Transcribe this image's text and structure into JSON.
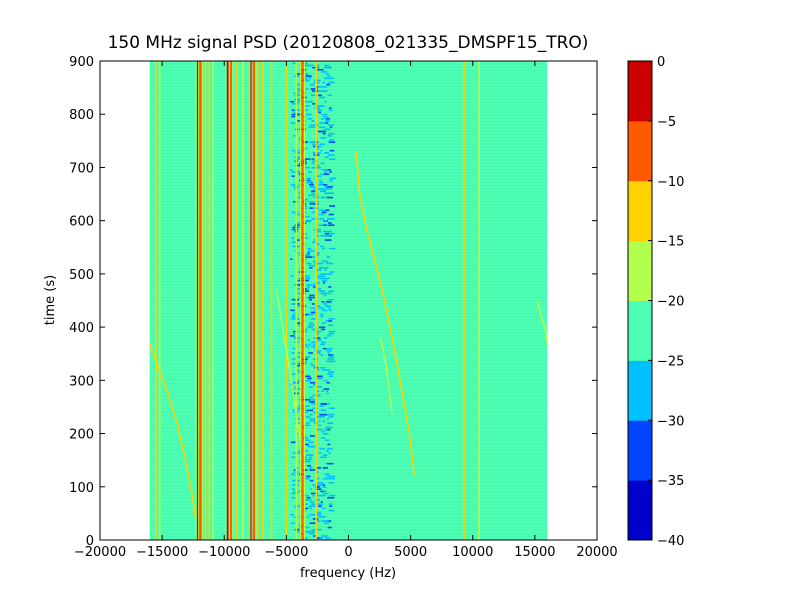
{
  "chart_data": {
    "type": "heatmap",
    "title": "150 MHz signal PSD (20120808_021335_DMSPF15_TRO)",
    "xlabel": "frequency (Hz)",
    "ylabel": "time (s)",
    "xlim": [
      -20000,
      20000
    ],
    "ylim": [
      0,
      900
    ],
    "x_ticks": [
      -20000,
      -15000,
      -10000,
      -5000,
      0,
      5000,
      10000,
      15000,
      20000
    ],
    "x_tick_labels": [
      "−20000",
      "−15000",
      "−10000",
      "−5000",
      "0",
      "5000",
      "10000",
      "15000",
      "20000"
    ],
    "y_ticks": [
      0,
      100,
      200,
      300,
      400,
      500,
      600,
      700,
      800,
      900
    ],
    "y_tick_labels": [
      "0",
      "100",
      "200",
      "300",
      "400",
      "500",
      "600",
      "700",
      "800",
      "900"
    ],
    "data_extent_x": [
      -16000,
      16000
    ],
    "background_level": -22.5,
    "colorbar": {
      "levels": [
        -40,
        -35,
        -30,
        -25,
        -20,
        -15,
        -10,
        -5,
        0
      ],
      "tick_labels": [
        "−40",
        "−35",
        "−30",
        "−25",
        "−20",
        "−15",
        "−10",
        "−5",
        "0"
      ],
      "band_colors": [
        "#0000cd",
        "#0044ff",
        "#00c0ff",
        "#4dffb2",
        "#b2ff4d",
        "#ffd200",
        "#ff5a00",
        "#cd0000"
      ]
    },
    "carriers": [
      {
        "freq": -15500,
        "level": -12.5
      },
      {
        "freq": -15200,
        "level": -17.5
      },
      {
        "freq": -12100,
        "level": -2.5
      },
      {
        "freq": -11900,
        "level": -7.5
      },
      {
        "freq": -11500,
        "level": -12.5
      },
      {
        "freq": -11200,
        "level": -12.5
      },
      {
        "freq": -10900,
        "level": -17.5
      },
      {
        "freq": -9700,
        "level": -2.5
      },
      {
        "freq": -9450,
        "level": -7.5
      },
      {
        "freq": -9000,
        "level": -12.5
      },
      {
        "freq": -8500,
        "level": -17.5
      },
      {
        "freq": -7800,
        "level": -2.5
      },
      {
        "freq": -7600,
        "level": -7.5
      },
      {
        "freq": -7300,
        "level": -12.5
      },
      {
        "freq": -6900,
        "level": -12.5
      },
      {
        "freq": -6200,
        "level": -12.5
      },
      {
        "freq": -5000,
        "level": -12.5
      },
      {
        "freq": -4200,
        "level": -17.5
      },
      {
        "freq": -3700,
        "level": -7.5
      },
      {
        "freq": -2600,
        "level": -12.5
      },
      {
        "freq": 9300,
        "level": -12.5
      },
      {
        "freq": 10500,
        "level": -17.5
      }
    ],
    "dopplers": [
      {
        "name": "",
        "level": -12.5,
        "points": [
          [
            620,
            730
          ],
          [
            900,
            650
          ],
          [
            1500,
            580
          ],
          [
            2200,
            520
          ],
          [
            2900,
            450
          ],
          [
            3600,
            370
          ],
          [
            4300,
            280
          ],
          [
            4900,
            200
          ],
          [
            5300,
            120
          ]
        ]
      },
      {
        "name": "",
        "level": -12.5,
        "points": [
          [
            -16000,
            370
          ],
          [
            -15400,
            330
          ],
          [
            -14600,
            280
          ],
          [
            -13800,
            220
          ],
          [
            -13200,
            160
          ],
          [
            -12700,
            100
          ],
          [
            -12300,
            40
          ]
        ]
      },
      {
        "name": "",
        "level": -17.5,
        "points": [
          [
            -5800,
            470
          ],
          [
            -5300,
            400
          ],
          [
            -4800,
            330
          ],
          [
            -4300,
            250
          ],
          [
            -3900,
            190
          ]
        ]
      },
      {
        "name": "",
        "level": -17.5,
        "points": [
          [
            15200,
            450
          ],
          [
            15500,
            420
          ],
          [
            15800,
            400
          ],
          [
            16000,
            370
          ]
        ]
      },
      {
        "name": "",
        "level": -17.5,
        "points": [
          [
            2600,
            380
          ],
          [
            3000,
            330
          ],
          [
            3300,
            280
          ],
          [
            3500,
            240
          ]
        ]
      }
    ],
    "noise_region": {
      "x": [
        -4700,
        -1500
      ],
      "level": -27.5
    },
    "grid": false,
    "legend": "none"
  }
}
